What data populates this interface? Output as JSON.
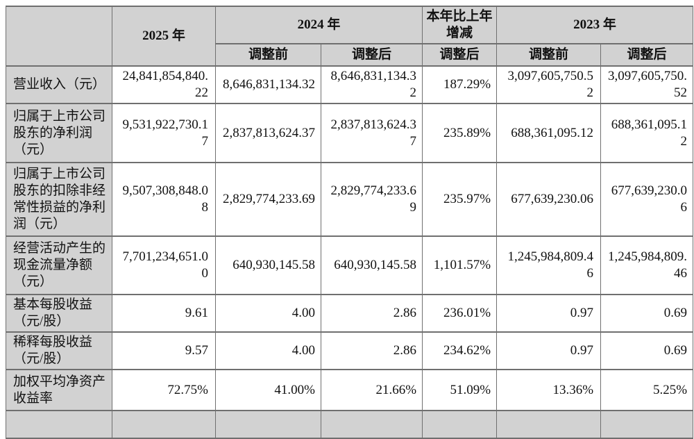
{
  "colors": {
    "header_bg": "#d2d2d2",
    "label_column_bg": "#d2d2d2",
    "border": "#6f6f6f",
    "text": "#111111"
  },
  "table": {
    "headers": {
      "y2025": "2025 年",
      "y2024": "2024 年",
      "yoy": "本年比上年增减",
      "y2023": "2023 年",
      "adj_before": "调整前",
      "adj_after": "调整后"
    },
    "rows": [
      {
        "label": "营业收入（元）",
        "y2025": "24,841,854,840.22",
        "y2024_before": "8,646,831,134.32",
        "y2024_after": "8,646,831,134.32",
        "yoy_after": "187.29%",
        "y2023_before": "3,097,605,750.52",
        "y2023_after": "3,097,605,750.52"
      },
      {
        "label": "归属于上市公司股东的净利润（元）",
        "y2025": "9,531,922,730.17",
        "y2024_before": "2,837,813,624.37",
        "y2024_after": "2,837,813,624.37",
        "yoy_after": "235.89%",
        "y2023_before": "688,361,095.12",
        "y2023_after": "688,361,095.12"
      },
      {
        "label": "归属于上市公司股东的扣除非经常性损益的净利润（元）",
        "y2025": "9,507,308,848.08",
        "y2024_before": "2,829,774,233.69",
        "y2024_after": "2,829,774,233.69",
        "yoy_after": "235.97%",
        "y2023_before": "677,639,230.06",
        "y2023_after": "677,639,230.06"
      },
      {
        "label": "经营活动产生的现金流量净额（元）",
        "y2025": "7,701,234,651.00",
        "y2024_before": "640,930,145.58",
        "y2024_after": "640,930,145.58",
        "yoy_after": "1,101.57%",
        "y2023_before": "1,245,984,809.46",
        "y2023_after": "1,245,984,809.46"
      },
      {
        "label": "基本每股收益（元/股）",
        "y2025": "9.61",
        "y2024_before": "4.00",
        "y2024_after": "2.86",
        "yoy_after": "236.01%",
        "y2023_before": "0.97",
        "y2023_after": "0.69"
      },
      {
        "label": "稀释每股收益（元/股）",
        "y2025": "9.57",
        "y2024_before": "4.00",
        "y2024_after": "2.86",
        "yoy_after": "234.62%",
        "y2023_before": "0.97",
        "y2023_after": "0.69"
      },
      {
        "label": "加权平均净资产收益率",
        "y2025": "72.75%",
        "y2024_before": "41.00%",
        "y2024_after": "21.66%",
        "yoy_after": "51.09%",
        "y2023_before": "13.36%",
        "y2023_after": "5.25%"
      }
    ]
  }
}
